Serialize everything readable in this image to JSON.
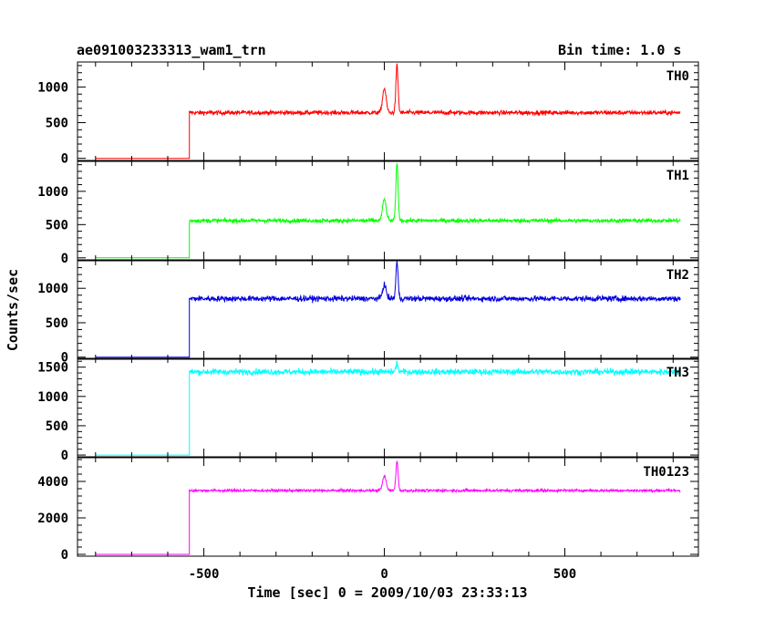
{
  "chart_data": {
    "type": "line",
    "title": "ae091003233313_wam1_trn",
    "bin_time": "Bin time: 1.0 s",
    "xlabel": "Time [sec] 0 = 2009/10/03 23:33:13",
    "ylabel": "Counts/sec",
    "xlim": [
      -850,
      870
    ],
    "x_ticks": [
      -500,
      0,
      500
    ],
    "grid": false,
    "onset_time": -540,
    "end_time": 820,
    "panels": [
      {
        "name": "TH0",
        "color": "#ff0000",
        "ylim": [
          -30,
          1350
        ],
        "yticks": [
          0,
          500,
          1000
        ],
        "baseline": 0,
        "plateau": 640,
        "noise": 30,
        "peaks": [
          {
            "x": 0,
            "y": 980,
            "w": 5
          },
          {
            "x": 35,
            "y": 1300,
            "w": 3
          }
        ]
      },
      {
        "name": "TH1",
        "color": "#00ff00",
        "ylim": [
          -30,
          1450
        ],
        "yticks": [
          0,
          500,
          1000
        ],
        "baseline": 0,
        "plateau": 560,
        "noise": 30,
        "peaks": [
          {
            "x": 0,
            "y": 880,
            "w": 5
          },
          {
            "x": 35,
            "y": 1420,
            "w": 3
          }
        ]
      },
      {
        "name": "TH2",
        "color": "#0000dd",
        "ylim": [
          -30,
          1400
        ],
        "yticks": [
          0,
          500,
          1000
        ],
        "baseline": 0,
        "plateau": 850,
        "noise": 40,
        "peaks": [
          {
            "x": 0,
            "y": 1050,
            "w": 5
          },
          {
            "x": 35,
            "y": 1380,
            "w": 3
          }
        ]
      },
      {
        "name": "TH3",
        "color": "#00ffff",
        "ylim": [
          -30,
          1650
        ],
        "yticks": [
          0,
          500,
          1000,
          1500
        ],
        "baseline": 0,
        "plateau": 1420,
        "noise": 50,
        "peaks": [
          {
            "x": 35,
            "y": 1560,
            "w": 3
          }
        ]
      },
      {
        "name": "TH0123",
        "color": "#ff00ff",
        "ylim": [
          -100,
          5300
        ],
        "yticks": [
          0,
          2000,
          4000
        ],
        "baseline": 0,
        "plateau": 3500,
        "noise": 70,
        "peaks": [
          {
            "x": 0,
            "y": 4300,
            "w": 5
          },
          {
            "x": 35,
            "y": 5100,
            "w": 3
          }
        ]
      }
    ]
  }
}
